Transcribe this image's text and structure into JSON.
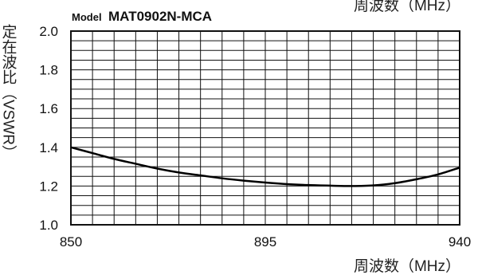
{
  "header": {
    "model_prefix": "Model",
    "model_name": "MAT0902N-MCA",
    "top_axis_label": "周波数（MHz）"
  },
  "chart_data": {
    "type": "line",
    "xlabel": "周波数（MHz）",
    "ylabel": "定在波比（VSWR）",
    "xlim": [
      850,
      940
    ],
    "ylim": [
      1.0,
      2.0
    ],
    "x_tick_labels": [
      "850",
      "895",
      "940"
    ],
    "y_tick_labels": [
      "1.0",
      "1.2",
      "1.4",
      "1.6",
      "1.8",
      "2.0"
    ],
    "grid": true,
    "series": [
      {
        "x": [
          850,
          855,
          860,
          865,
          870,
          875,
          880,
          885,
          890,
          895,
          900,
          905,
          910,
          915,
          920,
          925,
          930,
          935,
          940
        ],
        "values": [
          1.4,
          1.37,
          1.34,
          1.315,
          1.29,
          1.27,
          1.255,
          1.24,
          1.228,
          1.218,
          1.21,
          1.205,
          1.202,
          1.2,
          1.203,
          1.215,
          1.235,
          1.26,
          1.295
        ]
      }
    ]
  },
  "style": {
    "grid_color": "#111111",
    "line_color": "#000000"
  }
}
